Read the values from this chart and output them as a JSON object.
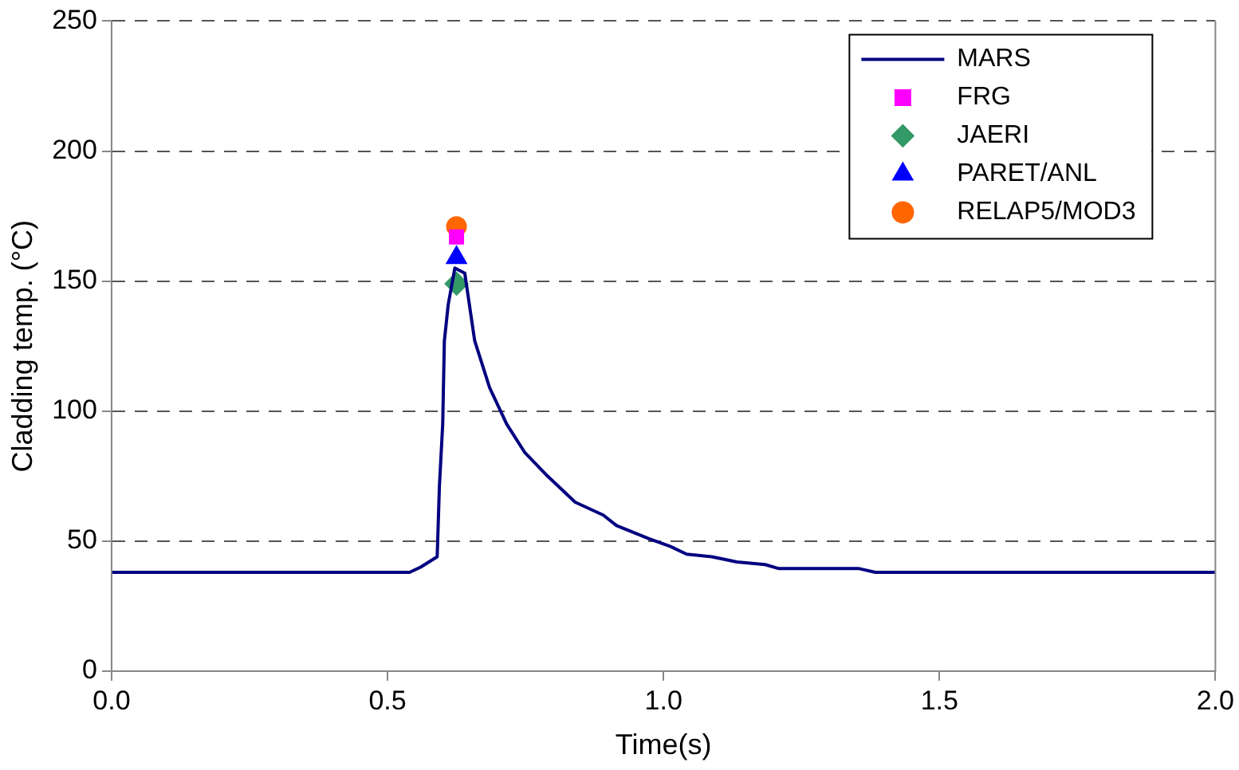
{
  "chart_data": {
    "type": "line",
    "xlabel": "Time(s)",
    "ylabel": "Cladding temp. (°C)",
    "xlim": [
      0,
      2
    ],
    "xticks": [
      {
        "value": 0,
        "label": "0.0"
      },
      {
        "value": 0.5,
        "label": "0.5"
      },
      {
        "value": 1,
        "label": "1.0"
      },
      {
        "value": 1.5,
        "label": "1.5"
      },
      {
        "value": 2,
        "label": "2.0"
      }
    ],
    "ylim": [
      0,
      250
    ],
    "yticks": [
      0,
      50,
      100,
      150,
      200,
      250
    ],
    "grid": "y",
    "legend": "top right",
    "series": [
      {
        "name": "MARS",
        "type": "line",
        "color": "#000080",
        "marker": "none",
        "x": [
          0,
          0.54,
          0.56,
          0.59,
          0.594,
          0.6,
          0.603,
          0.61,
          0.622,
          0.64,
          0.658,
          0.685,
          0.716,
          0.749,
          0.79,
          0.84,
          0.891,
          0.915,
          0.973,
          1.012,
          1.042,
          1.088,
          1.133,
          1.184,
          1.208,
          1.353,
          1.384,
          2
        ],
        "values": [
          38,
          38,
          40,
          44,
          71,
          95,
          127,
          141,
          155,
          153,
          127,
          109,
          95,
          84,
          75,
          65,
          60,
          56,
          51,
          48,
          45,
          44,
          42,
          41,
          39.5,
          39.5,
          38,
          38
        ]
      },
      {
        "name": "FRG",
        "type": "scatter",
        "color": "#ff00ff",
        "marker": "square",
        "x": [
          0.625
        ],
        "values": [
          167
        ]
      },
      {
        "name": "JAERI",
        "type": "scatter",
        "color": "#339966",
        "marker": "diamond",
        "x": [
          0.625
        ],
        "values": [
          149
        ]
      },
      {
        "name": "PARET/ANL",
        "type": "scatter",
        "color": "#0000ff",
        "marker": "triangle",
        "x": [
          0.625
        ],
        "values": [
          159
        ]
      },
      {
        "name": "RELAP5/MOD3",
        "type": "scatter",
        "color": "#ff6600",
        "marker": "circle",
        "x": [
          0.625
        ],
        "values": [
          171
        ]
      }
    ]
  }
}
